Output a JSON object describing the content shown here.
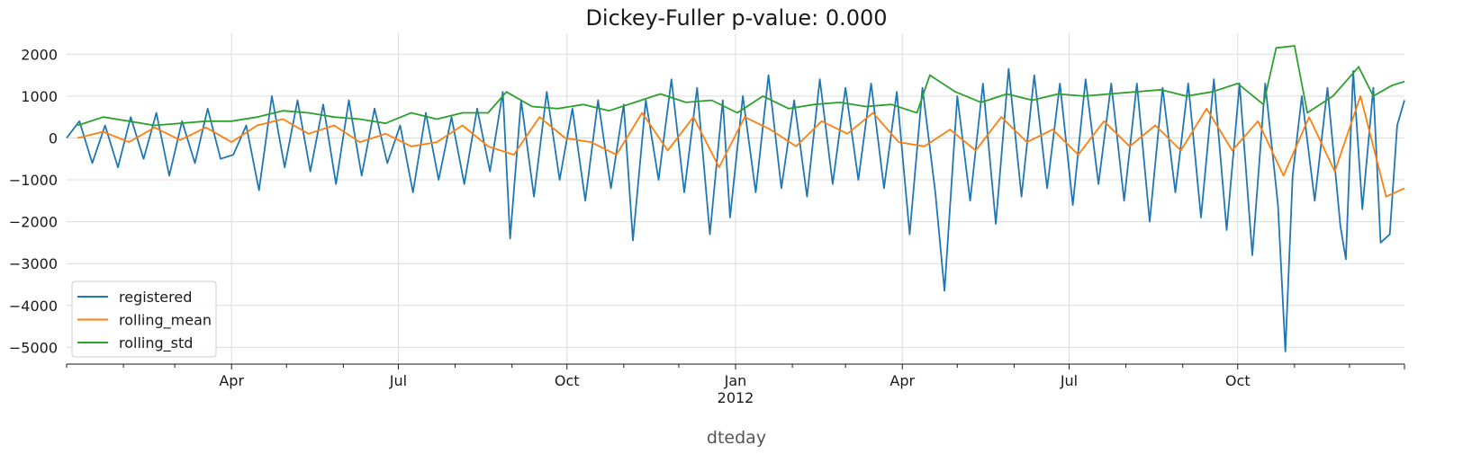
{
  "chart_data": {
    "type": "line",
    "title": "Dickey-Fuller p-value: 0.000",
    "xlabel": "dteday",
    "ylabel": "",
    "xlim": [
      "2011-01-01",
      "2012-12-31"
    ],
    "ylim": [
      -5400,
      2500
    ],
    "yticks": [
      2000,
      1000,
      0,
      -1000,
      -2000,
      -3000,
      -4000,
      -5000
    ],
    "ytick_labels": [
      "2000",
      "1000",
      "0",
      "−1000",
      "−2000",
      "−3000",
      "−4000",
      "−5000"
    ],
    "xticks": [
      {
        "date": "2011-04-01",
        "label": "Apr",
        "sub": ""
      },
      {
        "date": "2011-07-01",
        "label": "Jul",
        "sub": ""
      },
      {
        "date": "2011-10-01",
        "label": "Oct",
        "sub": ""
      },
      {
        "date": "2012-01-01",
        "label": "Jan",
        "sub": "2012"
      },
      {
        "date": "2012-04-01",
        "label": "Apr",
        "sub": ""
      },
      {
        "date": "2012-07-01",
        "label": "Jul",
        "sub": ""
      },
      {
        "date": "2012-10-01",
        "label": "Oct",
        "sub": ""
      }
    ],
    "grid": true,
    "legend_position": "lower-left",
    "series": [
      {
        "name": "registered",
        "color": "#1f77b4",
        "points": [
          [
            "2011-01-01",
            0
          ],
          [
            "2011-01-08",
            400
          ],
          [
            "2011-01-15",
            -600
          ],
          [
            "2011-01-22",
            300
          ],
          [
            "2011-01-29",
            -700
          ],
          [
            "2011-02-05",
            500
          ],
          [
            "2011-02-12",
            -500
          ],
          [
            "2011-02-19",
            600
          ],
          [
            "2011-02-26",
            -900
          ],
          [
            "2011-03-05",
            400
          ],
          [
            "2011-03-12",
            -600
          ],
          [
            "2011-03-19",
            700
          ],
          [
            "2011-03-26",
            -500
          ],
          [
            "2011-04-02",
            -400
          ],
          [
            "2011-04-09",
            300
          ],
          [
            "2011-04-16",
            -1250
          ],
          [
            "2011-04-23",
            1000
          ],
          [
            "2011-04-30",
            -700
          ],
          [
            "2011-05-07",
            900
          ],
          [
            "2011-05-14",
            -800
          ],
          [
            "2011-05-21",
            800
          ],
          [
            "2011-05-28",
            -1100
          ],
          [
            "2011-06-04",
            900
          ],
          [
            "2011-06-11",
            -900
          ],
          [
            "2011-06-18",
            700
          ],
          [
            "2011-06-25",
            -600
          ],
          [
            "2011-07-02",
            300
          ],
          [
            "2011-07-09",
            -1300
          ],
          [
            "2011-07-16",
            600
          ],
          [
            "2011-07-23",
            -1000
          ],
          [
            "2011-07-30",
            500
          ],
          [
            "2011-08-06",
            -1100
          ],
          [
            "2011-08-13",
            700
          ],
          [
            "2011-08-20",
            -800
          ],
          [
            "2011-08-27",
            1100
          ],
          [
            "2011-08-31",
            -2400
          ],
          [
            "2011-09-06",
            900
          ],
          [
            "2011-09-13",
            -1400
          ],
          [
            "2011-09-20",
            1100
          ],
          [
            "2011-09-27",
            -1000
          ],
          [
            "2011-10-04",
            700
          ],
          [
            "2011-10-11",
            -1500
          ],
          [
            "2011-10-18",
            900
          ],
          [
            "2011-10-25",
            -1200
          ],
          [
            "2011-11-01",
            800
          ],
          [
            "2011-11-06",
            -2450
          ],
          [
            "2011-11-13",
            900
          ],
          [
            "2011-11-20",
            -1000
          ],
          [
            "2011-11-27",
            1400
          ],
          [
            "2011-12-04",
            -1300
          ],
          [
            "2011-12-11",
            1200
          ],
          [
            "2011-12-18",
            -2300
          ],
          [
            "2011-12-25",
            900
          ],
          [
            "2011-12-29",
            -1900
          ],
          [
            "2012-01-05",
            1000
          ],
          [
            "2012-01-12",
            -1300
          ],
          [
            "2012-01-19",
            1500
          ],
          [
            "2012-01-26",
            -1200
          ],
          [
            "2012-02-02",
            900
          ],
          [
            "2012-02-09",
            -1400
          ],
          [
            "2012-02-16",
            1400
          ],
          [
            "2012-02-23",
            -1100
          ],
          [
            "2012-03-01",
            1200
          ],
          [
            "2012-03-08",
            -1000
          ],
          [
            "2012-03-15",
            1300
          ],
          [
            "2012-03-22",
            -1200
          ],
          [
            "2012-03-29",
            1100
          ],
          [
            "2012-04-05",
            -2300
          ],
          [
            "2012-04-12",
            1200
          ],
          [
            "2012-04-19",
            -1300
          ],
          [
            "2012-04-24",
            -3650
          ],
          [
            "2012-05-01",
            1000
          ],
          [
            "2012-05-08",
            -1500
          ],
          [
            "2012-05-15",
            1300
          ],
          [
            "2012-05-22",
            -2050
          ],
          [
            "2012-05-29",
            1650
          ],
          [
            "2012-06-05",
            -1400
          ],
          [
            "2012-06-12",
            1500
          ],
          [
            "2012-06-19",
            -1200
          ],
          [
            "2012-06-26",
            1300
          ],
          [
            "2012-07-03",
            -1600
          ],
          [
            "2012-07-10",
            1400
          ],
          [
            "2012-07-17",
            -1100
          ],
          [
            "2012-07-24",
            1300
          ],
          [
            "2012-07-31",
            -1500
          ],
          [
            "2012-08-07",
            1300
          ],
          [
            "2012-08-14",
            -2000
          ],
          [
            "2012-08-21",
            1200
          ],
          [
            "2012-08-28",
            -1300
          ],
          [
            "2012-09-04",
            1300
          ],
          [
            "2012-09-11",
            -1900
          ],
          [
            "2012-09-18",
            1400
          ],
          [
            "2012-09-25",
            -2200
          ],
          [
            "2012-10-02",
            1300
          ],
          [
            "2012-10-09",
            -2800
          ],
          [
            "2012-10-16",
            1300
          ],
          [
            "2012-10-23",
            -1600
          ],
          [
            "2012-10-27",
            -5100
          ],
          [
            "2012-10-31",
            -900
          ],
          [
            "2012-11-05",
            1000
          ],
          [
            "2012-11-12",
            -1500
          ],
          [
            "2012-11-19",
            1200
          ],
          [
            "2012-11-26",
            -2100
          ],
          [
            "2012-11-29",
            -2900
          ],
          [
            "2012-12-03",
            1600
          ],
          [
            "2012-12-08",
            -1700
          ],
          [
            "2012-12-14",
            1200
          ],
          [
            "2012-12-18",
            -2500
          ],
          [
            "2012-12-23",
            -2300
          ],
          [
            "2012-12-27",
            300
          ],
          [
            "2012-12-31",
            900
          ]
        ]
      },
      {
        "name": "rolling_mean",
        "color": "#ff7f0e",
        "points": [
          [
            "2011-01-07",
            0
          ],
          [
            "2011-01-21",
            150
          ],
          [
            "2011-02-04",
            -100
          ],
          [
            "2011-02-18",
            250
          ],
          [
            "2011-03-04",
            -50
          ],
          [
            "2011-03-18",
            250
          ],
          [
            "2011-04-01",
            -100
          ],
          [
            "2011-04-15",
            300
          ],
          [
            "2011-04-29",
            450
          ],
          [
            "2011-05-13",
            100
          ],
          [
            "2011-05-27",
            300
          ],
          [
            "2011-06-10",
            -100
          ],
          [
            "2011-06-24",
            100
          ],
          [
            "2011-07-08",
            -200
          ],
          [
            "2011-07-22",
            -100
          ],
          [
            "2011-08-05",
            300
          ],
          [
            "2011-08-19",
            -200
          ],
          [
            "2011-09-02",
            -400
          ],
          [
            "2011-09-16",
            500
          ],
          [
            "2011-09-30",
            0
          ],
          [
            "2011-10-14",
            -100
          ],
          [
            "2011-10-28",
            -400
          ],
          [
            "2011-11-11",
            600
          ],
          [
            "2011-11-25",
            -300
          ],
          [
            "2011-12-09",
            500
          ],
          [
            "2011-12-23",
            -700
          ],
          [
            "2012-01-06",
            500
          ],
          [
            "2012-01-20",
            200
          ],
          [
            "2012-02-03",
            -200
          ],
          [
            "2012-02-17",
            400
          ],
          [
            "2012-03-02",
            100
          ],
          [
            "2012-03-16",
            600
          ],
          [
            "2012-03-30",
            -100
          ],
          [
            "2012-04-13",
            -200
          ],
          [
            "2012-04-27",
            200
          ],
          [
            "2012-05-11",
            -300
          ],
          [
            "2012-05-25",
            500
          ],
          [
            "2012-06-08",
            -100
          ],
          [
            "2012-06-22",
            200
          ],
          [
            "2012-07-06",
            -400
          ],
          [
            "2012-07-20",
            400
          ],
          [
            "2012-08-03",
            -200
          ],
          [
            "2012-08-17",
            300
          ],
          [
            "2012-08-31",
            -300
          ],
          [
            "2012-09-14",
            700
          ],
          [
            "2012-09-28",
            -300
          ],
          [
            "2012-10-12",
            400
          ],
          [
            "2012-10-26",
            -900
          ],
          [
            "2012-11-09",
            500
          ],
          [
            "2012-11-23",
            -800
          ],
          [
            "2012-12-07",
            1000
          ],
          [
            "2012-12-21",
            -1400
          ],
          [
            "2012-12-31",
            -1200
          ]
        ]
      },
      {
        "name": "rolling_std",
        "color": "#2ca02c",
        "points": [
          [
            "2011-01-07",
            300
          ],
          [
            "2011-01-21",
            500
          ],
          [
            "2011-02-04",
            400
          ],
          [
            "2011-02-18",
            300
          ],
          [
            "2011-03-04",
            350
          ],
          [
            "2011-03-18",
            400
          ],
          [
            "2011-04-01",
            400
          ],
          [
            "2011-04-15",
            500
          ],
          [
            "2011-04-29",
            650
          ],
          [
            "2011-05-13",
            600
          ],
          [
            "2011-05-27",
            500
          ],
          [
            "2011-06-10",
            450
          ],
          [
            "2011-06-24",
            350
          ],
          [
            "2011-07-08",
            600
          ],
          [
            "2011-07-22",
            450
          ],
          [
            "2011-08-05",
            600
          ],
          [
            "2011-08-19",
            600
          ],
          [
            "2011-08-29",
            1100
          ],
          [
            "2011-09-12",
            750
          ],
          [
            "2011-09-26",
            700
          ],
          [
            "2011-10-10",
            800
          ],
          [
            "2011-10-24",
            650
          ],
          [
            "2011-11-07",
            850
          ],
          [
            "2011-11-21",
            1050
          ],
          [
            "2011-12-05",
            850
          ],
          [
            "2011-12-19",
            900
          ],
          [
            "2012-01-02",
            600
          ],
          [
            "2012-01-16",
            1000
          ],
          [
            "2012-01-30",
            700
          ],
          [
            "2012-02-13",
            800
          ],
          [
            "2012-02-27",
            850
          ],
          [
            "2012-03-12",
            750
          ],
          [
            "2012-03-26",
            800
          ],
          [
            "2012-04-09",
            600
          ],
          [
            "2012-04-16",
            1500
          ],
          [
            "2012-04-30",
            1100
          ],
          [
            "2012-05-14",
            850
          ],
          [
            "2012-05-28",
            1050
          ],
          [
            "2012-06-11",
            900
          ],
          [
            "2012-06-25",
            1050
          ],
          [
            "2012-07-09",
            1000
          ],
          [
            "2012-07-23",
            1050
          ],
          [
            "2012-08-06",
            1100
          ],
          [
            "2012-08-20",
            1150
          ],
          [
            "2012-09-03",
            1000
          ],
          [
            "2012-09-17",
            1100
          ],
          [
            "2012-10-01",
            1300
          ],
          [
            "2012-10-15",
            800
          ],
          [
            "2012-10-22",
            2150
          ],
          [
            "2012-11-01",
            2200
          ],
          [
            "2012-11-08",
            600
          ],
          [
            "2012-11-22",
            1000
          ],
          [
            "2012-12-06",
            1700
          ],
          [
            "2012-12-14",
            1000
          ],
          [
            "2012-12-24",
            1250
          ],
          [
            "2012-12-31",
            1350
          ]
        ]
      }
    ]
  }
}
